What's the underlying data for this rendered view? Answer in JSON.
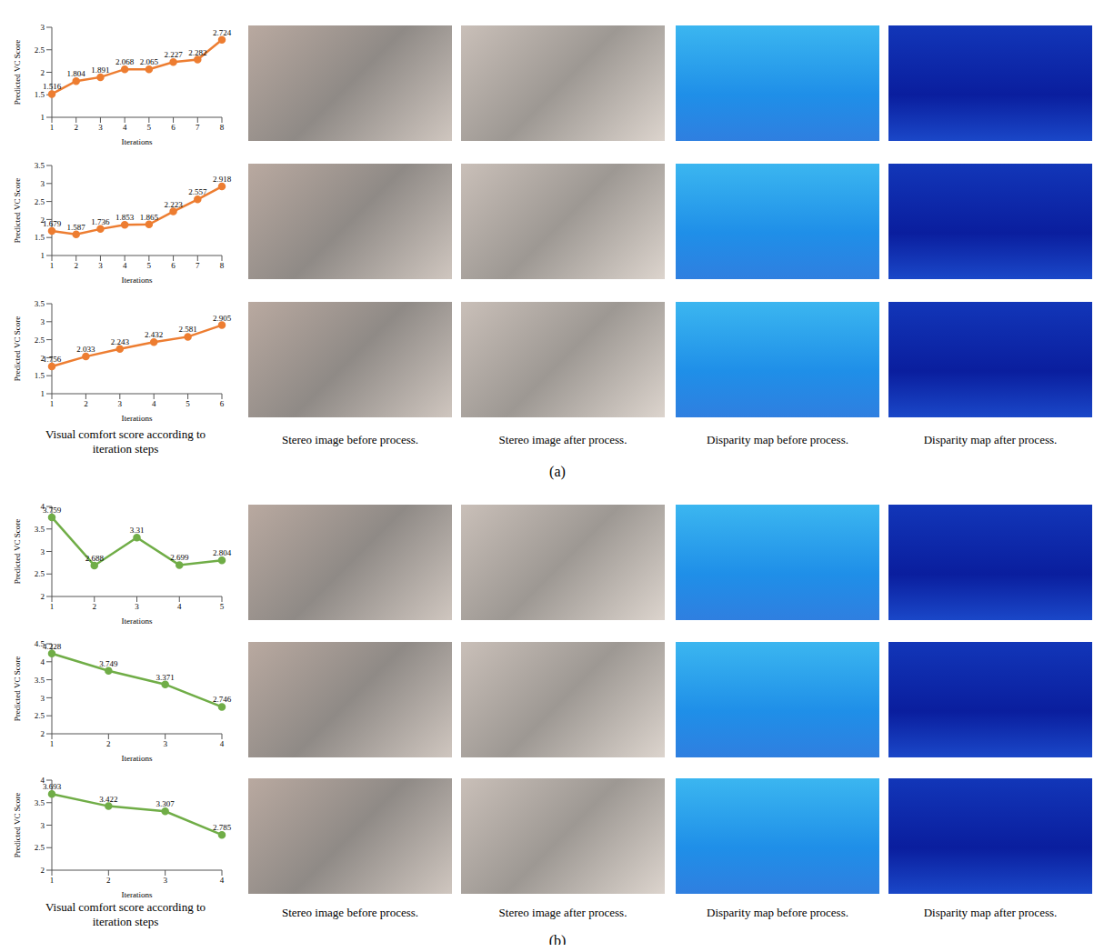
{
  "chart_data": [
    {
      "type": "line",
      "xlabel": "Iterations",
      "ylabel": "Predicted VC Score",
      "x": [
        1,
        2,
        3,
        4,
        5,
        6,
        7,
        8
      ],
      "values": [
        1.516,
        1.804,
        1.891,
        2.068,
        2.065,
        2.227,
        2.282,
        2.724
      ],
      "color": "#ed7d31",
      "marker": "circle",
      "ylim": [
        1,
        3
      ],
      "yticks": [
        1,
        1.5,
        2,
        2.5,
        3
      ],
      "grid": false,
      "data_labels": true
    },
    {
      "type": "line",
      "xlabel": "Iterations",
      "ylabel": "Predicted VC Score",
      "x": [
        1,
        2,
        3,
        4,
        5,
        6,
        7,
        8
      ],
      "values": [
        1.679,
        1.587,
        1.736,
        1.853,
        1.865,
        2.223,
        2.557,
        2.918
      ],
      "color": "#ed7d31",
      "marker": "circle",
      "ylim": [
        1,
        3.5
      ],
      "yticks": [
        1,
        1.5,
        2,
        2.5,
        3,
        3.5
      ],
      "grid": false,
      "data_labels": true
    },
    {
      "type": "line",
      "xlabel": "Iterations",
      "ylabel": "Predicted VC Score",
      "x": [
        1,
        2,
        3,
        4,
        5,
        6
      ],
      "values": [
        1.756,
        2.033,
        2.243,
        2.432,
        2.581,
        2.905
      ],
      "color": "#ed7d31",
      "marker": "circle",
      "ylim": [
        1,
        3.5
      ],
      "yticks": [
        1,
        1.5,
        2,
        2.5,
        3,
        3.5
      ],
      "grid": false,
      "data_labels": true
    },
    {
      "type": "line",
      "xlabel": "Iterations",
      "ylabel": "Predicted VC Score",
      "x": [
        1,
        2,
        3,
        4,
        5
      ],
      "values": [
        3.759,
        2.688,
        3.31,
        2.699,
        2.804
      ],
      "color": "#70ad47",
      "marker": "circle",
      "ylim": [
        2,
        4
      ],
      "yticks": [
        2,
        2.5,
        3,
        3.5,
        4
      ],
      "grid": false,
      "data_labels": true
    },
    {
      "type": "line",
      "xlabel": "Iterations",
      "ylabel": "Predicted VC Score",
      "x": [
        1,
        2,
        3,
        4
      ],
      "values": [
        4.228,
        3.749,
        3.371,
        2.746
      ],
      "color": "#70ad47",
      "marker": "circle",
      "ylim": [
        2,
        4.5
      ],
      "yticks": [
        2,
        2.5,
        3,
        3.5,
        4,
        4.5
      ],
      "grid": false,
      "data_labels": true
    },
    {
      "type": "line",
      "xlabel": "Iterations",
      "ylabel": "Predicted VC Score",
      "x": [
        1,
        2,
        3,
        4
      ],
      "values": [
        3.693,
        3.422,
        3.307,
        2.785
      ],
      "color": "#70ad47",
      "marker": "circle",
      "ylim": [
        2,
        4
      ],
      "yticks": [
        2,
        2.5,
        3,
        3.5,
        4
      ],
      "grid": false,
      "data_labels": true
    }
  ],
  "figure": {
    "panel_labels": [
      "(a)",
      "(b)"
    ],
    "chart_caption": "Visual comfort score according to iteration steps",
    "column_captions": [
      "Stereo image before process.",
      "Stereo image after process.",
      "Disparity map before process.",
      "Disparity map after process."
    ]
  }
}
